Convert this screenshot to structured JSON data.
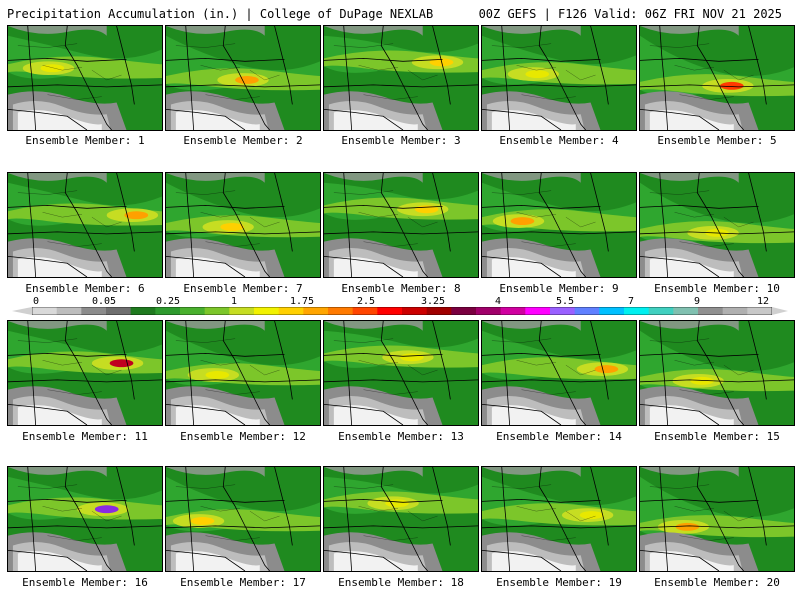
{
  "header": {
    "left_title": "Precipitation Accumulation (in.) | College of DuPage NEXLAB",
    "right_title": "00Z GEFS | F126 Valid: 06Z FRI NOV 21 2025"
  },
  "members": [
    {
      "label": "Ensemble Member: 1",
      "peak": 1.0
    },
    {
      "label": "Ensemble Member: 2",
      "peak": 2.0
    },
    {
      "label": "Ensemble Member: 3",
      "peak": 1.5
    },
    {
      "label": "Ensemble Member: 4",
      "peak": 1.0
    },
    {
      "label": "Ensemble Member: 5",
      "peak": 2.5
    },
    {
      "label": "Ensemble Member: 6",
      "peak": 2.0
    },
    {
      "label": "Ensemble Member: 7",
      "peak": 1.5
    },
    {
      "label": "Ensemble Member: 8",
      "peak": 1.5
    },
    {
      "label": "Ensemble Member: 9",
      "peak": 1.75
    },
    {
      "label": "Ensemble Member: 10",
      "peak": 1.0
    },
    {
      "label": "Ensemble Member: 11",
      "peak": 4.0
    },
    {
      "label": "Ensemble Member: 12",
      "peak": 1.0
    },
    {
      "label": "Ensemble Member: 13",
      "peak": 1.0
    },
    {
      "label": "Ensemble Member: 14",
      "peak": 1.75
    },
    {
      "label": "Ensemble Member: 15",
      "peak": 1.0
    },
    {
      "label": "Ensemble Member: 16",
      "peak": 5.5
    },
    {
      "label": "Ensemble Member: 17",
      "peak": 1.5
    },
    {
      "label": "Ensemble Member: 18",
      "peak": 1.0
    },
    {
      "label": "Ensemble Member: 19",
      "peak": 1.0
    },
    {
      "label": "Ensemble Member: 20",
      "peak": 1.75
    }
  ],
  "colorbar": {
    "labels": [
      "0",
      "0.05",
      "0.25",
      "1",
      "1.75",
      "2.5",
      "3.25",
      "4",
      "5.5",
      "7",
      "9",
      "12"
    ],
    "colors": [
      "#d9d9d9",
      "#bdbdbd",
      "#8c8c8c",
      "#6f6f6f",
      "#1f7a1f",
      "#2e9a2e",
      "#49b02d",
      "#7cc62a",
      "#c6dd22",
      "#f2f200",
      "#ffd000",
      "#ffa500",
      "#ff7a00",
      "#ff4500",
      "#ff0000",
      "#cc0000",
      "#a00000",
      "#7a0040",
      "#a0006a",
      "#d000a0",
      "#ff00ff",
      "#9a60ff",
      "#6080ff",
      "#00c0ff",
      "#00f0f0",
      "#40d0c0",
      "#80c0b0",
      "#909090",
      "#b0b0b0",
      "#c8c8c8"
    ]
  }
}
